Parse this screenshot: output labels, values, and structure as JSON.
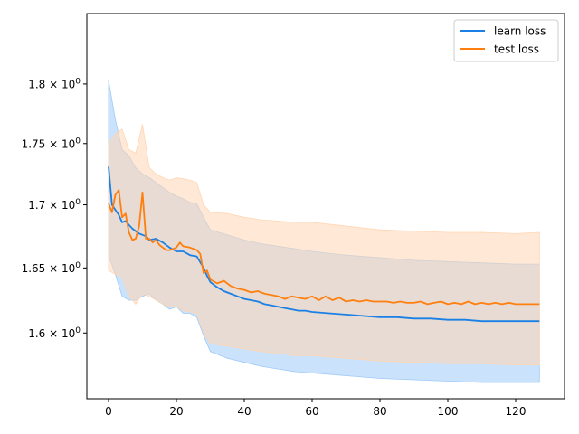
{
  "chart_data": {
    "type": "line",
    "title": "",
    "xlabel": "",
    "ylabel": "",
    "xlim": [
      -6.4,
      134.4
    ],
    "ylim": [
      1.551,
      1.861
    ],
    "y_scale": "log",
    "grid": false,
    "legend_position": "top-right",
    "x_ticks": [
      0,
      20,
      40,
      60,
      80,
      100,
      120
    ],
    "x_tick_labels": [
      "0",
      "20",
      "40",
      "60",
      "80",
      "100",
      "120"
    ],
    "y_ticks": [
      1.6,
      1.65,
      1.7,
      1.75,
      1.8
    ],
    "y_tick_labels": [
      {
        "base": "1.6 × 10",
        "exp": "0"
      },
      {
        "base": "1.65 × 10",
        "exp": "0"
      },
      {
        "base": "1.7 × 10",
        "exp": "0"
      },
      {
        "base": "1.75 × 10",
        "exp": "0"
      },
      {
        "base": "1.8 × 10",
        "exp": "0"
      }
    ],
    "series": [
      {
        "name": "learn loss",
        "color": "#1a80e5",
        "band_color": "#9fcaf8",
        "points": [
          [
            0,
            1.731
          ],
          [
            1,
            1.7
          ],
          [
            2,
            1.696
          ],
          [
            3,
            1.692
          ],
          [
            4,
            1.686
          ],
          [
            5,
            1.687
          ],
          [
            6,
            1.684
          ],
          [
            7,
            1.681
          ],
          [
            8,
            1.679
          ],
          [
            9,
            1.677
          ],
          [
            10,
            1.676
          ],
          [
            11,
            1.675
          ],
          [
            12,
            1.672
          ],
          [
            14,
            1.673
          ],
          [
            16,
            1.67
          ],
          [
            18,
            1.666
          ],
          [
            20,
            1.663
          ],
          [
            22,
            1.663
          ],
          [
            24,
            1.66
          ],
          [
            26,
            1.659
          ],
          [
            28,
            1.65
          ],
          [
            29,
            1.644
          ],
          [
            30,
            1.639
          ],
          [
            32,
            1.635
          ],
          [
            34,
            1.632
          ],
          [
            36,
            1.63
          ],
          [
            38,
            1.628
          ],
          [
            40,
            1.626
          ],
          [
            42,
            1.625
          ],
          [
            44,
            1.624
          ],
          [
            46,
            1.622
          ],
          [
            48,
            1.621
          ],
          [
            50,
            1.62
          ],
          [
            52,
            1.619
          ],
          [
            54,
            1.618
          ],
          [
            56,
            1.617
          ],
          [
            58,
            1.617
          ],
          [
            60,
            1.616
          ],
          [
            65,
            1.615
          ],
          [
            70,
            1.614
          ],
          [
            75,
            1.613
          ],
          [
            80,
            1.612
          ],
          [
            85,
            1.612
          ],
          [
            90,
            1.611
          ],
          [
            95,
            1.611
          ],
          [
            100,
            1.61
          ],
          [
            105,
            1.61
          ],
          [
            110,
            1.609
          ],
          [
            115,
            1.609
          ],
          [
            120,
            1.609
          ],
          [
            127,
            1.609
          ]
        ],
        "band_upper": [
          [
            0,
            1.803
          ],
          [
            2,
            1.77
          ],
          [
            4,
            1.745
          ],
          [
            6,
            1.74
          ],
          [
            8,
            1.73
          ],
          [
            10,
            1.725
          ],
          [
            12,
            1.722
          ],
          [
            14,
            1.718
          ],
          [
            16,
            1.714
          ],
          [
            18,
            1.71
          ],
          [
            20,
            1.707
          ],
          [
            22,
            1.705
          ],
          [
            24,
            1.702
          ],
          [
            26,
            1.701
          ],
          [
            28,
            1.69
          ],
          [
            30,
            1.68
          ],
          [
            35,
            1.676
          ],
          [
            40,
            1.672
          ],
          [
            45,
            1.669
          ],
          [
            50,
            1.667
          ],
          [
            55,
            1.665
          ],
          [
            60,
            1.663
          ],
          [
            70,
            1.66
          ],
          [
            80,
            1.658
          ],
          [
            90,
            1.656
          ],
          [
            100,
            1.655
          ],
          [
            110,
            1.654
          ],
          [
            120,
            1.653
          ],
          [
            127,
            1.653
          ]
        ],
        "band_lower": [
          [
            0,
            1.66
          ],
          [
            2,
            1.645
          ],
          [
            4,
            1.628
          ],
          [
            6,
            1.625
          ],
          [
            8,
            1.625
          ],
          [
            10,
            1.628
          ],
          [
            12,
            1.63
          ],
          [
            14,
            1.625
          ],
          [
            16,
            1.622
          ],
          [
            18,
            1.618
          ],
          [
            20,
            1.62
          ],
          [
            22,
            1.615
          ],
          [
            24,
            1.615
          ],
          [
            26,
            1.612
          ],
          [
            28,
            1.598
          ],
          [
            30,
            1.586
          ],
          [
            35,
            1.581
          ],
          [
            40,
            1.578
          ],
          [
            45,
            1.575
          ],
          [
            50,
            1.573
          ],
          [
            55,
            1.571
          ],
          [
            60,
            1.57
          ],
          [
            70,
            1.568
          ],
          [
            80,
            1.566
          ],
          [
            90,
            1.565
          ],
          [
            100,
            1.564
          ],
          [
            110,
            1.563
          ],
          [
            120,
            1.563
          ],
          [
            127,
            1.563
          ]
        ]
      },
      {
        "name": "test loss",
        "color": "#ff7f0e",
        "band_color": "#ffd6b3",
        "points": [
          [
            0,
            1.701
          ],
          [
            1,
            1.694
          ],
          [
            2,
            1.708
          ],
          [
            3,
            1.712
          ],
          [
            4,
            1.69
          ],
          [
            5,
            1.693
          ],
          [
            6,
            1.678
          ],
          [
            7,
            1.672
          ],
          [
            8,
            1.673
          ],
          [
            9,
            1.683
          ],
          [
            10,
            1.71
          ],
          [
            11,
            1.673
          ],
          [
            12,
            1.673
          ],
          [
            13,
            1.67
          ],
          [
            14,
            1.672
          ],
          [
            15,
            1.668
          ],
          [
            16,
            1.666
          ],
          [
            17,
            1.664
          ],
          [
            18,
            1.664
          ],
          [
            20,
            1.666
          ],
          [
            21,
            1.67
          ],
          [
            22,
            1.667
          ],
          [
            24,
            1.666
          ],
          [
            26,
            1.664
          ],
          [
            27,
            1.661
          ],
          [
            28,
            1.646
          ],
          [
            29,
            1.648
          ],
          [
            30,
            1.641
          ],
          [
            32,
            1.638
          ],
          [
            34,
            1.64
          ],
          [
            36,
            1.636
          ],
          [
            38,
            1.634
          ],
          [
            40,
            1.633
          ],
          [
            42,
            1.631
          ],
          [
            44,
            1.632
          ],
          [
            46,
            1.63
          ],
          [
            48,
            1.629
          ],
          [
            50,
            1.628
          ],
          [
            52,
            1.626
          ],
          [
            54,
            1.628
          ],
          [
            56,
            1.627
          ],
          [
            58,
            1.626
          ],
          [
            60,
            1.628
          ],
          [
            62,
            1.625
          ],
          [
            64,
            1.628
          ],
          [
            66,
            1.625
          ],
          [
            68,
            1.627
          ],
          [
            70,
            1.624
          ],
          [
            72,
            1.625
          ],
          [
            74,
            1.624
          ],
          [
            76,
            1.625
          ],
          [
            78,
            1.624
          ],
          [
            80,
            1.624
          ],
          [
            82,
            1.624
          ],
          [
            84,
            1.623
          ],
          [
            86,
            1.624
          ],
          [
            88,
            1.623
          ],
          [
            90,
            1.623
          ],
          [
            92,
            1.624
          ],
          [
            94,
            1.622
          ],
          [
            96,
            1.623
          ],
          [
            98,
            1.624
          ],
          [
            100,
            1.622
          ],
          [
            102,
            1.623
          ],
          [
            104,
            1.622
          ],
          [
            106,
            1.624
          ],
          [
            108,
            1.622
          ],
          [
            110,
            1.623
          ],
          [
            112,
            1.622
          ],
          [
            114,
            1.623
          ],
          [
            116,
            1.622
          ],
          [
            118,
            1.623
          ],
          [
            120,
            1.622
          ],
          [
            124,
            1.622
          ],
          [
            127,
            1.622
          ]
        ],
        "band_upper": [
          [
            0,
            1.75
          ],
          [
            2,
            1.758
          ],
          [
            4,
            1.762
          ],
          [
            6,
            1.745
          ],
          [
            8,
            1.742
          ],
          [
            10,
            1.766
          ],
          [
            12,
            1.73
          ],
          [
            14,
            1.725
          ],
          [
            16,
            1.722
          ],
          [
            18,
            1.72
          ],
          [
            20,
            1.722
          ],
          [
            22,
            1.721
          ],
          [
            24,
            1.72
          ],
          [
            26,
            1.718
          ],
          [
            28,
            1.7
          ],
          [
            30,
            1.694
          ],
          [
            35,
            1.693
          ],
          [
            40,
            1.69
          ],
          [
            45,
            1.688
          ],
          [
            50,
            1.687
          ],
          [
            55,
            1.686
          ],
          [
            60,
            1.686
          ],
          [
            70,
            1.683
          ],
          [
            80,
            1.68
          ],
          [
            90,
            1.679
          ],
          [
            100,
            1.678
          ],
          [
            110,
            1.678
          ],
          [
            120,
            1.677
          ],
          [
            127,
            1.678
          ]
        ],
        "band_lower": [
          [
            0,
            1.648
          ],
          [
            2,
            1.645
          ],
          [
            4,
            1.643
          ],
          [
            6,
            1.628
          ],
          [
            8,
            1.622
          ],
          [
            10,
            1.63
          ],
          [
            12,
            1.628
          ],
          [
            14,
            1.625
          ],
          [
            16,
            1.622
          ],
          [
            18,
            1.62
          ],
          [
            20,
            1.62
          ],
          [
            22,
            1.617
          ],
          [
            24,
            1.616
          ],
          [
            26,
            1.615
          ],
          [
            28,
            1.6
          ],
          [
            30,
            1.592
          ],
          [
            35,
            1.59
          ],
          [
            40,
            1.588
          ],
          [
            45,
            1.586
          ],
          [
            50,
            1.585
          ],
          [
            55,
            1.583
          ],
          [
            60,
            1.583
          ],
          [
            70,
            1.581
          ],
          [
            80,
            1.579
          ],
          [
            90,
            1.578
          ],
          [
            100,
            1.577
          ],
          [
            110,
            1.577
          ],
          [
            120,
            1.576
          ],
          [
            127,
            1.576
          ]
        ]
      }
    ]
  }
}
